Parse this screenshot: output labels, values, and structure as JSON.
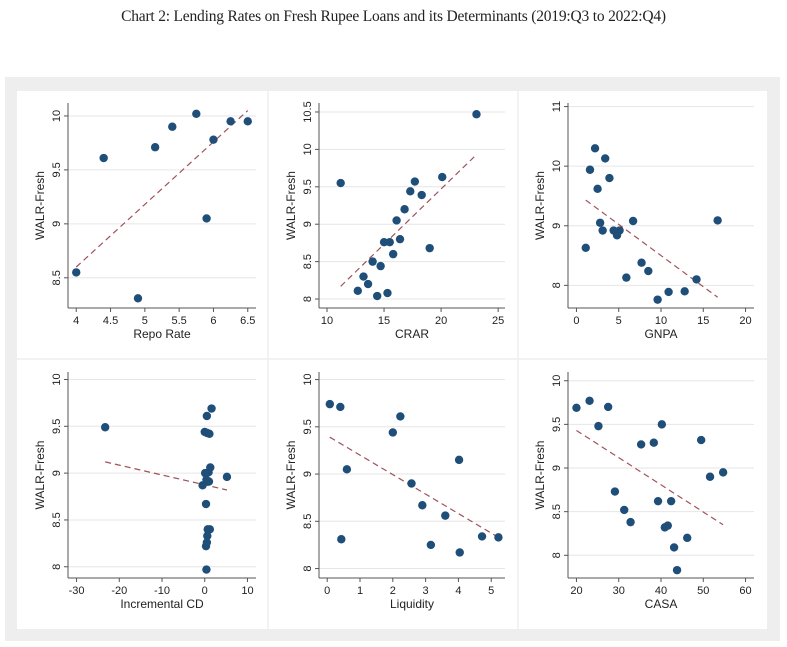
{
  "title": "Chart 2: Lending Rates on Fresh Rupee Loans and its Determinants (2019:Q3 to 2022:Q4)",
  "colors": {
    "point": "#1f4e79",
    "fit": "#a0525a",
    "grid": "#e6e6e6",
    "axis": "#555555",
    "outer_bg": "#eeeeee",
    "panel_bg": "#ffffff"
  },
  "chart_data": [
    {
      "type": "scatter",
      "xlabel": "Repo Rate",
      "ylabel": "WALR-Fresh",
      "xticks": [
        "4",
        "4.5",
        "5",
        "5.5",
        "6",
        "6.5"
      ],
      "xtick_values": [
        4,
        4.5,
        5,
        5.5,
        6,
        6.5
      ],
      "yticks": [
        "8.5",
        "9",
        "9.5",
        "10"
      ],
      "ytick_values": [
        8.5,
        9,
        9.5,
        10
      ],
      "xlim": [
        3.88,
        6.62
      ],
      "ylim": [
        8.22,
        10.12
      ],
      "points": [
        [
          4,
          8.55
        ],
        [
          4.4,
          9.61
        ],
        [
          4.9,
          8.31
        ],
        [
          5.15,
          9.71
        ],
        [
          5.4,
          9.9
        ],
        [
          5.75,
          10.02
        ],
        [
          5.9,
          9.05
        ],
        [
          6.0,
          9.78
        ],
        [
          6.25,
          9.95
        ],
        [
          6.5,
          9.95
        ]
      ],
      "fit": [
        [
          4,
          8.6
        ],
        [
          6.5,
          10.05
        ]
      ]
    },
    {
      "type": "scatter",
      "xlabel": "CRAR",
      "ylabel": "WALR-Fresh",
      "xticks": [
        "10",
        "15",
        "20",
        "25"
      ],
      "xtick_values": [
        10,
        15,
        20,
        25
      ],
      "yticks": [
        "8",
        "8.5",
        "9",
        "9.5",
        "10",
        "10.5"
      ],
      "ytick_values": [
        8,
        8.5,
        9,
        9.5,
        10,
        10.5
      ],
      "xlim": [
        9.3,
        25.6
      ],
      "ylim": [
        7.88,
        10.62
      ],
      "points": [
        [
          11.2,
          9.55
        ],
        [
          12.7,
          8.11
        ],
        [
          13.2,
          8.3
        ],
        [
          13.6,
          8.2
        ],
        [
          14.0,
          8.5
        ],
        [
          14.4,
          8.04
        ],
        [
          14.7,
          8.44
        ],
        [
          15.0,
          8.76
        ],
        [
          15.3,
          8.08
        ],
        [
          15.5,
          8.76
        ],
        [
          15.8,
          8.6
        ],
        [
          16.1,
          9.05
        ],
        [
          16.4,
          8.8
        ],
        [
          16.8,
          9.2
        ],
        [
          17.3,
          9.44
        ],
        [
          17.7,
          9.57
        ],
        [
          18.3,
          9.39
        ],
        [
          19.0,
          8.68
        ],
        [
          20.1,
          9.63
        ],
        [
          23.1,
          10.47
        ]
      ],
      "fit": [
        [
          11.2,
          8.17
        ],
        [
          23.1,
          9.93
        ]
      ]
    },
    {
      "type": "scatter",
      "xlabel": "GNPA",
      "ylabel": "WALR-Fresh",
      "xticks": [
        "0",
        "5",
        "10",
        "15",
        "20"
      ],
      "xtick_values": [
        0,
        5,
        10,
        15,
        20
      ],
      "yticks": [
        "8",
        "9",
        "10",
        "11"
      ],
      "ytick_values": [
        8,
        9,
        10,
        11
      ],
      "xlim": [
        -1,
        21
      ],
      "ylim": [
        7.62,
        11.06
      ],
      "points": [
        [
          1.1,
          8.63
        ],
        [
          1.6,
          9.94
        ],
        [
          2.2,
          10.3
        ],
        [
          2.5,
          9.62
        ],
        [
          2.8,
          9.05
        ],
        [
          3.1,
          8.92
        ],
        [
          3.4,
          10.13
        ],
        [
          3.9,
          9.8
        ],
        [
          4.4,
          8.92
        ],
        [
          4.8,
          8.84
        ],
        [
          5.1,
          8.92
        ],
        [
          5.9,
          8.13
        ],
        [
          6.7,
          9.08
        ],
        [
          7.7,
          8.38
        ],
        [
          8.5,
          8.24
        ],
        [
          9.6,
          7.76
        ],
        [
          10.9,
          7.89
        ],
        [
          12.8,
          7.9
        ],
        [
          14.2,
          8.1
        ],
        [
          16.7,
          9.09
        ]
      ],
      "fit": [
        [
          1.1,
          9.43
        ],
        [
          16.7,
          7.8
        ]
      ]
    },
    {
      "type": "scatter",
      "xlabel": "Incremental CD",
      "ylabel": "WALR-Fresh",
      "xticks": [
        "-30",
        "-20",
        "-10",
        "0",
        "10"
      ],
      "xtick_values": [
        -30,
        -20,
        -10,
        0,
        10
      ],
      "yticks": [
        "8",
        "8.5",
        "9",
        "9.5",
        "10"
      ],
      "ytick_values": [
        8,
        8.5,
        9,
        9.5,
        10
      ],
      "xlim": [
        -32,
        12
      ],
      "ylim": [
        7.88,
        10.08
      ],
      "points": [
        [
          -23.3,
          9.49
        ],
        [
          0.5,
          9.61
        ],
        [
          1.6,
          9.69
        ],
        [
          0,
          9.44
        ],
        [
          0.5,
          9.43
        ],
        [
          1.1,
          9.42
        ],
        [
          1.3,
          9.06
        ],
        [
          0.9,
          9.01
        ],
        [
          0.1,
          9.0
        ],
        [
          0.4,
          8.93
        ],
        [
          1.0,
          8.91
        ],
        [
          -0.5,
          8.87
        ],
        [
          5.2,
          8.96
        ],
        [
          0.3,
          8.67
        ],
        [
          0.7,
          8.4
        ],
        [
          1.2,
          8.4
        ],
        [
          0.6,
          8.33
        ],
        [
          0.5,
          8.26
        ],
        [
          0.3,
          8.22
        ],
        [
          0.4,
          7.97
        ]
      ],
      "fit": [
        [
          -23.3,
          9.12
        ],
        [
          5.2,
          8.82
        ]
      ]
    },
    {
      "type": "scatter",
      "xlabel": "Liquidity",
      "ylabel": "WALR-Fresh",
      "xticks": [
        "0",
        "1",
        "2",
        "3",
        "4",
        "5"
      ],
      "xtick_values": [
        0,
        1,
        2,
        3,
        4,
        5
      ],
      "yticks": [
        "8",
        "8.5",
        "9",
        "9.5",
        "10"
      ],
      "ytick_values": [
        8,
        8.5,
        9,
        9.5,
        10
      ],
      "xlim": [
        -0.25,
        5.42
      ],
      "ylim": [
        7.9,
        10.08
      ],
      "points": [
        [
          0.08,
          9.74
        ],
        [
          0.4,
          9.71
        ],
        [
          0.6,
          9.05
        ],
        [
          0.43,
          8.31
        ],
        [
          2.0,
          9.44
        ],
        [
          2.23,
          9.61
        ],
        [
          2.57,
          8.9
        ],
        [
          2.9,
          8.67
        ],
        [
          3.16,
          8.25
        ],
        [
          3.6,
          8.56
        ],
        [
          4.02,
          9.15
        ],
        [
          4.04,
          8.17
        ],
        [
          4.72,
          8.34
        ],
        [
          5.22,
          8.33
        ]
      ],
      "fit": [
        [
          0.08,
          9.39
        ],
        [
          5.22,
          8.33
        ]
      ]
    },
    {
      "type": "scatter",
      "xlabel": "CASA",
      "ylabel": "WALR-Fresh",
      "xticks": [
        "20",
        "30",
        "40",
        "50",
        "60"
      ],
      "xtick_values": [
        20,
        30,
        40,
        50,
        60
      ],
      "yticks": [
        "8",
        "8.5",
        "9",
        "9.5",
        "10"
      ],
      "ytick_values": [
        8,
        8.5,
        9,
        9.5,
        10
      ],
      "xlim": [
        18,
        62
      ],
      "ylim": [
        7.74,
        10.1
      ],
      "points": [
        [
          20,
          9.69
        ],
        [
          23.1,
          9.77
        ],
        [
          25.2,
          9.48
        ],
        [
          27.5,
          9.7
        ],
        [
          29.1,
          8.73
        ],
        [
          31.3,
          8.52
        ],
        [
          32.8,
          8.38
        ],
        [
          35.3,
          9.27
        ],
        [
          38.3,
          9.29
        ],
        [
          39.3,
          8.62
        ],
        [
          40.2,
          9.5
        ],
        [
          40.9,
          8.32
        ],
        [
          41.6,
          8.34
        ],
        [
          42.4,
          8.62
        ],
        [
          43.1,
          8.09
        ],
        [
          43.8,
          7.83
        ],
        [
          46.2,
          8.2
        ],
        [
          49.5,
          9.32
        ],
        [
          51.6,
          8.9
        ],
        [
          54.7,
          8.95
        ]
      ],
      "fit": [
        [
          20,
          9.43
        ],
        [
          54.7,
          8.35
        ]
      ]
    }
  ]
}
